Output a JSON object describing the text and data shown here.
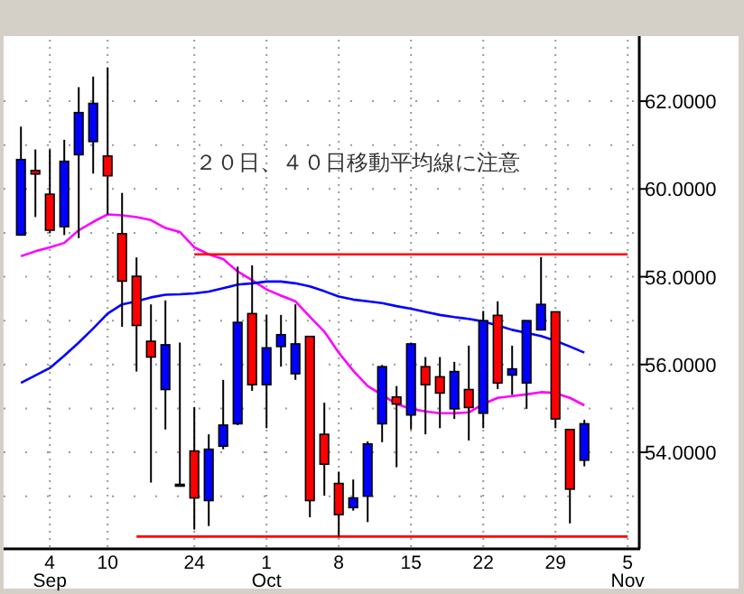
{
  "chart_data": {
    "type": "candlestick",
    "categories": [
      null,
      null,
      "4 Sep",
      null,
      null,
      null,
      "10",
      null,
      null,
      null,
      null,
      null,
      "24",
      null,
      null,
      null,
      null,
      "1 Oct",
      null,
      null,
      null,
      null,
      "8",
      null,
      null,
      null,
      null,
      "15",
      null,
      null,
      null,
      null,
      "22",
      null,
      null,
      null,
      null,
      "29",
      null,
      null,
      null,
      null,
      "5 Nov"
    ],
    "ohlc": [
      [
        58.95,
        61.42,
        58.95,
        60.67
      ],
      [
        60.42,
        60.9,
        59.36,
        60.34
      ],
      [
        59.88,
        60.9,
        58.99,
        59.06
      ],
      [
        59.14,
        61.12,
        58.95,
        60.63
      ],
      [
        60.78,
        62.32,
        58.88,
        61.74
      ],
      [
        61.08,
        62.56,
        60.35,
        61.95
      ],
      [
        60.75,
        62.77,
        59.42,
        60.3
      ],
      [
        58.98,
        59.91,
        56.86,
        57.9
      ],
      [
        58.01,
        58.44,
        55.84,
        56.89
      ],
      [
        56.53,
        57.37,
        53.31,
        56.17
      ],
      [
        55.43,
        57.46,
        54.52,
        56.45
      ],
      [
        53.27,
        56.5,
        53.24,
        53.27
      ],
      [
        54.03,
        55.03,
        52.24,
        52.96
      ],
      [
        52.9,
        54.41,
        52.32,
        54.07
      ],
      [
        54.14,
        55.65,
        54.07,
        54.62
      ],
      [
        54.65,
        58.23,
        54.62,
        56.96
      ],
      [
        57.16,
        58.26,
        55.4,
        55.54
      ],
      [
        55.54,
        57.13,
        54.55,
        56.38
      ],
      [
        56.41,
        57.13,
        55.95,
        56.68
      ],
      [
        55.79,
        57.37,
        55.65,
        56.47
      ],
      [
        56.64,
        56.64,
        52.52,
        52.9
      ],
      [
        54.41,
        55.13,
        53.01,
        53.73
      ],
      [
        53.29,
        53.56,
        52.08,
        52.58
      ],
      [
        52.74,
        53.38,
        52.67,
        52.96
      ],
      [
        53.0,
        54.25,
        52.41,
        54.19
      ],
      [
        54.65,
        55.99,
        54.23,
        55.95
      ],
      [
        55.26,
        55.51,
        53.66,
        55.1
      ],
      [
        54.85,
        56.5,
        54.52,
        56.47
      ],
      [
        55.95,
        56.17,
        54.41,
        55.54
      ],
      [
        55.72,
        56.17,
        54.55,
        55.35
      ],
      [
        54.99,
        56.06,
        54.76,
        55.84
      ],
      [
        55.43,
        56.43,
        54.27,
        55.02
      ],
      [
        54.89,
        57.22,
        54.55,
        57.0
      ],
      [
        57.12,
        57.44,
        55.44,
        55.58
      ],
      [
        55.76,
        56.43,
        55.31,
        55.9
      ],
      [
        55.58,
        57.0,
        54.99,
        57.0
      ],
      [
        56.79,
        58.45,
        56.79,
        57.37
      ],
      [
        57.2,
        57.2,
        54.55,
        54.76
      ],
      [
        54.52,
        54.52,
        52.38,
        53.16
      ],
      [
        53.82,
        54.74,
        53.68,
        54.65
      ],
      null,
      null,
      null
    ],
    "colors": [
      "#0000ff",
      "#ff0000",
      "#ff0000",
      "#0000ff",
      "#0000ff",
      "#0000ff",
      "#ff0000",
      "#ff0000",
      "#ff0000",
      "#ff0000",
      "#0000ff",
      "#000000",
      "#ff0000",
      "#0000ff",
      "#0000ff",
      "#0000ff",
      "#ff0000",
      "#0000ff",
      "#0000ff",
      "#0000ff",
      "#ff0000",
      "#ff0000",
      "#ff0000",
      "#0000ff",
      "#0000ff",
      "#0000ff",
      "#ff0000",
      "#0000ff",
      "#ff0000",
      "#ff0000",
      "#0000ff",
      "#ff0000",
      "#0000ff",
      "#ff0000",
      "#0000ff",
      "#0000ff",
      "#0000ff",
      "#ff0000",
      "#ff0000",
      "#0000ff",
      null,
      null,
      null
    ],
    "series": [
      {
        "type": "line",
        "color": "#ff00ff",
        "values": [
          58.47,
          58.58,
          58.67,
          58.77,
          59.06,
          59.25,
          59.42,
          59.4,
          59.36,
          59.29,
          59.11,
          59.02,
          58.67,
          58.51,
          58.4,
          58.12,
          57.92,
          57.71,
          57.57,
          57.44,
          57.09,
          56.75,
          56.27,
          55.86,
          55.51,
          55.31,
          55.1,
          54.99,
          54.93,
          54.89,
          54.89,
          54.91,
          55.1,
          55.24,
          55.28,
          55.32,
          55.37,
          55.35,
          55.24,
          55.07,
          null,
          null,
          null
        ]
      },
      {
        "type": "line",
        "color": "#0000ff",
        "values": [
          55.58,
          55.75,
          55.92,
          56.2,
          56.5,
          56.82,
          57.16,
          57.37,
          57.44,
          57.53,
          57.59,
          57.6,
          57.62,
          57.66,
          57.74,
          57.82,
          57.85,
          57.89,
          57.89,
          57.85,
          57.78,
          57.67,
          57.55,
          57.48,
          57.44,
          57.4,
          57.33,
          57.27,
          57.2,
          57.13,
          57.08,
          57.04,
          56.98,
          56.89,
          56.79,
          56.72,
          56.65,
          56.54,
          56.41,
          56.27,
          null,
          null,
          null
        ]
      },
      {
        "type": "line",
        "color": "#ff0000",
        "values": [
          null,
          null,
          null,
          null,
          null,
          null,
          null,
          null,
          null,
          null,
          null,
          null,
          58.51,
          58.51,
          58.51,
          58.51,
          58.51,
          58.51,
          58.51,
          58.51,
          58.51,
          58.51,
          58.51,
          58.51,
          58.51,
          58.51,
          58.51,
          58.51,
          58.51,
          58.51,
          58.51,
          58.51,
          58.51,
          58.51,
          58.51,
          58.51,
          58.51,
          58.51,
          58.51,
          58.51,
          58.51,
          58.51,
          58.51
        ]
      },
      {
        "type": "line",
        "color": "#ff0000",
        "values": [
          null,
          null,
          null,
          null,
          null,
          null,
          null,
          null,
          52.08,
          52.08,
          52.08,
          52.08,
          52.08,
          52.08,
          52.08,
          52.08,
          52.08,
          52.08,
          52.08,
          52.08,
          52.08,
          52.08,
          52.08,
          52.08,
          52.08,
          52.08,
          52.08,
          52.08,
          52.08,
          52.08,
          52.08,
          52.08,
          52.08,
          52.08,
          52.08,
          52.08,
          52.08,
          52.08,
          52.08,
          52.08,
          52.08,
          52.08,
          52.08
        ]
      }
    ],
    "ylim": [
      51.8,
      63.4
    ],
    "yticks": [
      {
        "value": 53,
        "label": null
      },
      {
        "value": 54,
        "label": "54.0000"
      },
      {
        "value": 55,
        "label": null
      },
      {
        "value": 56,
        "label": "56.0000"
      },
      {
        "value": 57,
        "label": null
      },
      {
        "value": 58,
        "label": "58.0000"
      },
      {
        "value": 59,
        "label": null
      },
      {
        "value": 60,
        "label": "60.0000"
      },
      {
        "value": 61,
        "label": null
      },
      {
        "value": 62,
        "label": "62.0000"
      }
    ],
    "grid": true,
    "annotations": [
      "２０日、４０日移動平均線に注意"
    ]
  }
}
